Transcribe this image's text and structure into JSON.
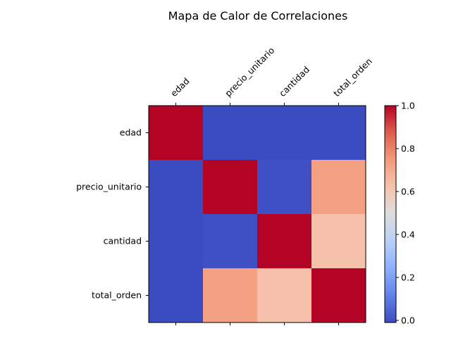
{
  "chart_data": {
    "type": "heatmap",
    "title": "Mapa de Calor de Correlaciones",
    "x_labels": [
      "edad",
      "precio_unitario",
      "cantidad",
      "total_orden"
    ],
    "y_labels": [
      "edad",
      "precio_unitario",
      "cantidad",
      "total_orden"
    ],
    "matrix": [
      [
        1.0,
        -0.01,
        -0.01,
        -0.01
      ],
      [
        -0.01,
        1.0,
        0.0,
        0.73
      ],
      [
        -0.01,
        0.0,
        1.0,
        0.63
      ],
      [
        -0.01,
        0.73,
        0.63,
        1.0
      ]
    ],
    "colormap": "coolwarm",
    "colorbar": {
      "range": [
        -0.01,
        1.0
      ],
      "ticks": [
        0.0,
        0.2,
        0.4,
        0.6,
        0.8,
        1.0
      ],
      "tick_labels": [
        "0.0",
        "0.2",
        "0.4",
        "0.6",
        "0.8",
        "1.0"
      ]
    },
    "x_tick_position": "top",
    "x_label_rotation": 45,
    "grid": false
  }
}
